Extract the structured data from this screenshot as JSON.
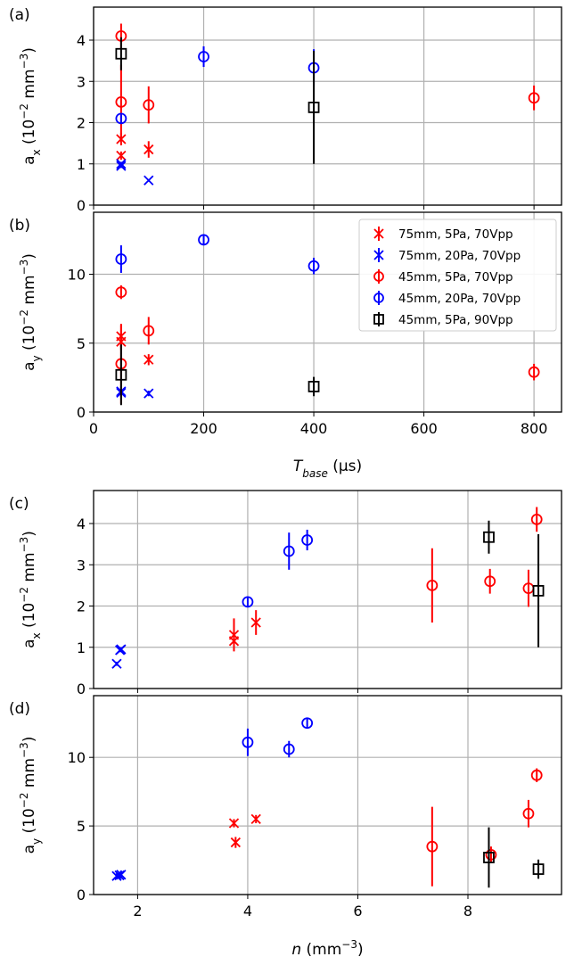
{
  "figure": {
    "labels": {
      "a": "(a)",
      "b": "(b)",
      "c": "(c)",
      "d": "(d)"
    },
    "xlabel_top": {
      "var": "T",
      "sub": "base",
      "unit": " (µs)"
    },
    "xlabel_bottom": {
      "var": "n",
      "unit": " (mm",
      "sup": "−3",
      "close": ")"
    },
    "ylabel_ax": {
      "base": "a",
      "sub": "x",
      "rest": " (10",
      "sup1": "−2",
      "mid": " mm",
      "sup2": "−3",
      "close": ")"
    },
    "ylabel_ay": {
      "base": "a",
      "sub": "y",
      "rest": " (10",
      "sup1": "−2",
      "mid": " mm",
      "sup2": "−3",
      "close": ")"
    }
  },
  "legend": {
    "placement": "top-right of panel (b)",
    "entries": [
      {
        "label": "75mm, 5Pa, 70Vpp",
        "marker": "x",
        "color": "#ff0000"
      },
      {
        "label": "75mm, 20Pa, 70Vpp",
        "marker": "x",
        "color": "#0000ff"
      },
      {
        "label": "45mm, 5Pa, 70Vpp",
        "marker": "o",
        "color": "#ff0000"
      },
      {
        "label": "45mm, 20Pa, 70Vpp",
        "marker": "o",
        "color": "#0000ff"
      },
      {
        "label": "45mm, 5Pa, 90Vpp",
        "marker": "s",
        "color": "#000000"
      }
    ]
  },
  "chart_data": [
    {
      "type": "scatter",
      "panel": "(a)",
      "xlim": [
        0,
        850
      ],
      "ylim": [
        0,
        4.8
      ],
      "xticks": [
        0,
        200,
        400,
        600,
        800
      ],
      "yticks": [
        0,
        1,
        2,
        3,
        4
      ],
      "show_xticklabels": false,
      "grid": true,
      "series": [
        {
          "name": "75mm, 5Pa, 70Vpp",
          "marker": "x",
          "color": "#ff0000",
          "points": [
            [
              50,
              1.6,
              0.15
            ],
            [
              50,
              1.2,
              0.1
            ],
            [
              100,
              1.35,
              0.2
            ]
          ]
        },
        {
          "name": "75mm, 20Pa, 70Vpp",
          "marker": "x",
          "color": "#0000ff",
          "points": [
            [
              50,
              1.0,
              0.05
            ],
            [
              50,
              0.95,
              0.05
            ],
            [
              100,
              0.6,
              0.03
            ]
          ]
        },
        {
          "name": "45mm, 5Pa, 70Vpp",
          "marker": "o",
          "color": "#ff0000",
          "points": [
            [
              50,
              4.1,
              0.3
            ],
            [
              50,
              2.5,
              0.9
            ],
            [
              100,
              2.43,
              0.45
            ],
            [
              800,
              2.6,
              0.3
            ]
          ]
        },
        {
          "name": "45mm, 20Pa, 70Vpp",
          "marker": "o",
          "color": "#0000ff",
          "points": [
            [
              50,
              2.1,
              0.1
            ],
            [
              200,
              3.6,
              0.25
            ],
            [
              400,
              3.33,
              0.45
            ]
          ]
        },
        {
          "name": "45mm, 5Pa, 90Vpp",
          "marker": "s",
          "color": "#000000",
          "points": [
            [
              50,
              3.67,
              0.4
            ],
            [
              400,
              2.37,
              1.37
            ]
          ]
        }
      ]
    },
    {
      "type": "scatter",
      "panel": "(b)",
      "xlim": [
        0,
        850
      ],
      "ylim": [
        0,
        14.5
      ],
      "xticks": [
        0,
        200,
        400,
        600,
        800
      ],
      "yticks": [
        0,
        5,
        10
      ],
      "show_xticklabels": true,
      "grid": true,
      "series": [
        {
          "name": "75mm, 5Pa, 70Vpp",
          "marker": "x",
          "color": "#ff0000",
          "points": [
            [
              50,
              5.5,
              0.8
            ],
            [
              50,
              5.1,
              0.6
            ],
            [
              100,
              3.8,
              0.4
            ]
          ]
        },
        {
          "name": "75mm, 20Pa, 70Vpp",
          "marker": "x",
          "color": "#0000ff",
          "points": [
            [
              50,
              1.5,
              0.4
            ],
            [
              50,
              1.4,
              0.3
            ],
            [
              100,
              1.35,
              0.2
            ]
          ]
        },
        {
          "name": "45mm, 5Pa, 70Vpp",
          "marker": "o",
          "color": "#ff0000",
          "points": [
            [
              50,
              8.7,
              0.5
            ],
            [
              50,
              3.5,
              2.9
            ],
            [
              100,
              5.9,
              1.0
            ],
            [
              800,
              2.9,
              0.6
            ]
          ]
        },
        {
          "name": "45mm, 20Pa, 70Vpp",
          "marker": "o",
          "color": "#0000ff",
          "points": [
            [
              50,
              11.1,
              1.0
            ],
            [
              200,
              12.5,
              0.4
            ],
            [
              400,
              10.6,
              0.6
            ]
          ]
        },
        {
          "name": "45mm, 5Pa, 90Vpp",
          "marker": "s",
          "color": "#000000",
          "points": [
            [
              50,
              2.7,
              2.2
            ],
            [
              400,
              1.85,
              0.7
            ]
          ]
        }
      ]
    },
    {
      "type": "scatter",
      "panel": "(c)",
      "xlim": [
        1.2,
        9.7
      ],
      "ylim": [
        0,
        4.8
      ],
      "xticks": [
        2,
        4,
        6,
        8
      ],
      "yticks": [
        0,
        1,
        2,
        3,
        4
      ],
      "show_xticklabels": false,
      "grid": true,
      "series": [
        {
          "name": "75mm, 5Pa, 70Vpp",
          "marker": "x",
          "color": "#ff0000",
          "points": [
            [
              3.75,
              1.3,
              0.4
            ],
            [
              3.75,
              1.15,
              0.15
            ],
            [
              4.15,
              1.6,
              0.3
            ]
          ]
        },
        {
          "name": "75mm, 20Pa, 70Vpp",
          "marker": "x",
          "color": "#0000ff",
          "points": [
            [
              1.62,
              0.6,
              0.05
            ],
            [
              1.7,
              0.95,
              0.05
            ],
            [
              1.68,
              0.93,
              0.05
            ]
          ]
        },
        {
          "name": "45mm, 5Pa, 70Vpp",
          "marker": "o",
          "color": "#ff0000",
          "points": [
            [
              7.35,
              2.5,
              0.9
            ],
            [
              8.4,
              2.6,
              0.3
            ],
            [
              9.1,
              2.43,
              0.45
            ],
            [
              9.25,
              4.1,
              0.3
            ]
          ]
        },
        {
          "name": "45mm, 20Pa, 70Vpp",
          "marker": "o",
          "color": "#0000ff",
          "points": [
            [
              4.0,
              2.1,
              0.1
            ],
            [
              4.75,
              3.33,
              0.45
            ],
            [
              5.08,
              3.6,
              0.25
            ]
          ]
        },
        {
          "name": "45mm, 5Pa, 90Vpp",
          "marker": "s",
          "color": "#000000",
          "points": [
            [
              8.38,
              3.67,
              0.4
            ],
            [
              9.28,
              2.37,
              1.37
            ]
          ]
        }
      ]
    },
    {
      "type": "scatter",
      "panel": "(d)",
      "xlim": [
        1.2,
        9.7
      ],
      "ylim": [
        0,
        14.5
      ],
      "xticks": [
        2,
        4,
        6,
        8
      ],
      "yticks": [
        0,
        5,
        10
      ],
      "show_xticklabels": true,
      "grid": true,
      "series": [
        {
          "name": "75mm, 5Pa, 70Vpp",
          "marker": "x",
          "color": "#ff0000",
          "points": [
            [
              3.75,
              5.2,
              0.3
            ],
            [
              3.78,
              3.8,
              0.4
            ],
            [
              4.15,
              5.5,
              0.3
            ]
          ]
        },
        {
          "name": "75mm, 20Pa, 70Vpp",
          "marker": "x",
          "color": "#0000ff",
          "points": [
            [
              1.62,
              1.35,
              0.2
            ],
            [
              1.7,
              1.45,
              0.3
            ],
            [
              1.67,
              1.4,
              0.25
            ]
          ]
        },
        {
          "name": "45mm, 5Pa, 70Vpp",
          "marker": "o",
          "color": "#ff0000",
          "points": [
            [
              7.35,
              3.5,
              2.9
            ],
            [
              8.42,
              2.9,
              0.6
            ],
            [
              9.1,
              5.9,
              1.0
            ],
            [
              9.25,
              8.7,
              0.5
            ]
          ]
        },
        {
          "name": "45mm, 20Pa, 70Vpp",
          "marker": "o",
          "color": "#0000ff",
          "points": [
            [
              4.0,
              11.1,
              1.0
            ],
            [
              4.75,
              10.6,
              0.6
            ],
            [
              5.08,
              12.5,
              0.4
            ]
          ]
        },
        {
          "name": "45mm, 5Pa, 90Vpp",
          "marker": "s",
          "color": "#000000",
          "points": [
            [
              8.38,
              2.7,
              2.2
            ],
            [
              9.28,
              1.85,
              0.7
            ]
          ]
        }
      ]
    }
  ]
}
